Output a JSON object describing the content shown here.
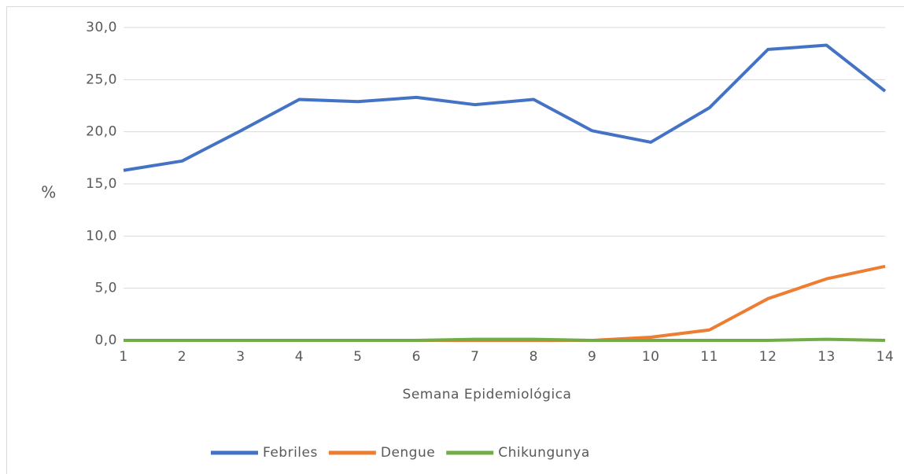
{
  "chart_data": {
    "type": "line",
    "x_label": "Semana Epidemiológica",
    "y_label": "%",
    "x": [
      1,
      2,
      3,
      4,
      5,
      6,
      7,
      8,
      9,
      10,
      11,
      12,
      13,
      14
    ],
    "series": [
      {
        "name": "Febriles",
        "color": "#4472c4",
        "values": [
          16.3,
          17.2,
          20.1,
          23.1,
          22.9,
          23.3,
          22.6,
          23.1,
          20.1,
          19.0,
          22.3,
          27.9,
          28.3,
          23.9
        ]
      },
      {
        "name": "Dengue",
        "color": "#ed7d31",
        "values": [
          0,
          0,
          0,
          0,
          0,
          0,
          0,
          0,
          0,
          0.3,
          1.0,
          4.0,
          5.9,
          7.1
        ]
      },
      {
        "name": "Chikungunya",
        "color": "#70ad47",
        "values": [
          0,
          0,
          0,
          0,
          0,
          0,
          0.1,
          0.1,
          0,
          0,
          0,
          0,
          0.1,
          0
        ]
      }
    ],
    "xlim": [
      1,
      14
    ],
    "xticks": [
      1,
      2,
      3,
      4,
      5,
      6,
      7,
      8,
      9,
      10,
      11,
      12,
      13,
      14
    ],
    "ylim": [
      0,
      30
    ],
    "yticks": [
      {
        "value": 0,
        "label": "0,0"
      },
      {
        "value": 5,
        "label": "5,0"
      },
      {
        "value": 10,
        "label": "10,0"
      },
      {
        "value": 15,
        "label": "15,0"
      },
      {
        "value": 20,
        "label": "20,0"
      },
      {
        "value": 25,
        "label": "25,0"
      },
      {
        "value": 30,
        "label": "30,0"
      }
    ],
    "grid": true,
    "legend": "bottom"
  }
}
